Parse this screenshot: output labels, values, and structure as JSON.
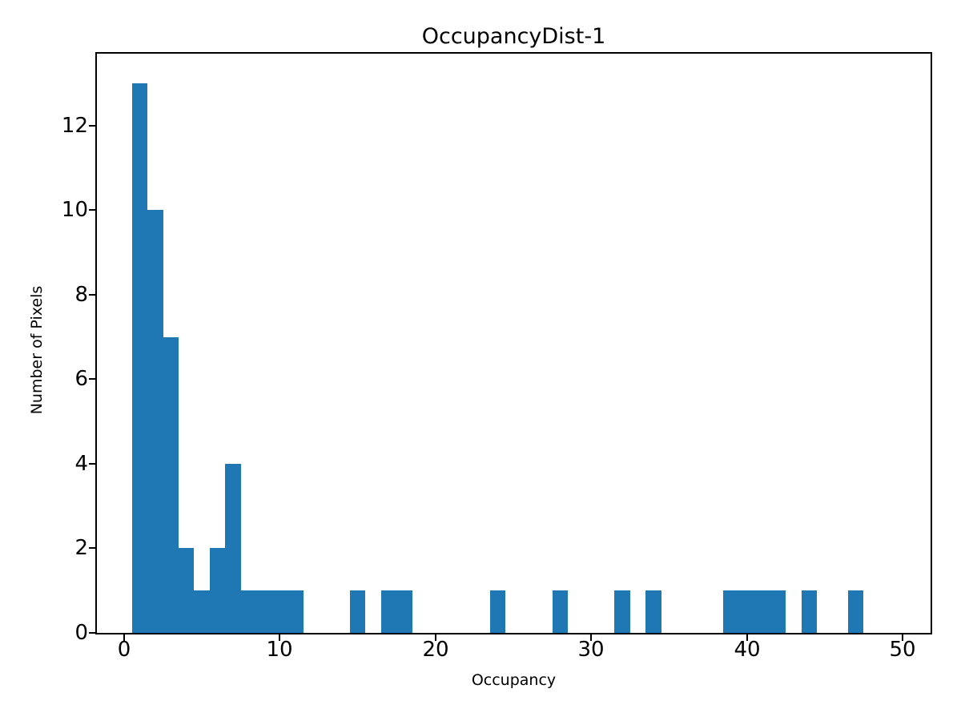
{
  "chart_data": {
    "type": "bar",
    "subtype": "histogram",
    "title": "OccupancyDist-1",
    "xlabel": "Occupancy",
    "ylabel": "Number of Pixels",
    "bar_color": "#1f77b4",
    "bin_width": 1,
    "x_bin_centers": [
      1,
      2,
      3,
      4,
      5,
      6,
      7,
      8,
      9,
      10,
      11,
      15,
      17,
      18,
      24,
      28,
      32,
      34,
      39,
      40,
      41,
      42,
      44,
      47
    ],
    "counts": [
      13,
      10,
      7,
      2,
      1,
      2,
      4,
      1,
      1,
      1,
      1,
      1,
      1,
      1,
      1,
      1,
      1,
      1,
      1,
      1,
      1,
      1,
      1,
      1
    ],
    "xticks": [
      0,
      10,
      20,
      30,
      40,
      50
    ],
    "yticks": [
      0,
      2,
      4,
      6,
      8,
      10,
      12
    ],
    "xlim": [
      -1.75,
      51.8
    ],
    "ylim": [
      0,
      13.7
    ],
    "grid": false,
    "legend_position": "none",
    "axis_color": "#000000",
    "text_color": "#000000",
    "background_color": "#ffffff"
  }
}
